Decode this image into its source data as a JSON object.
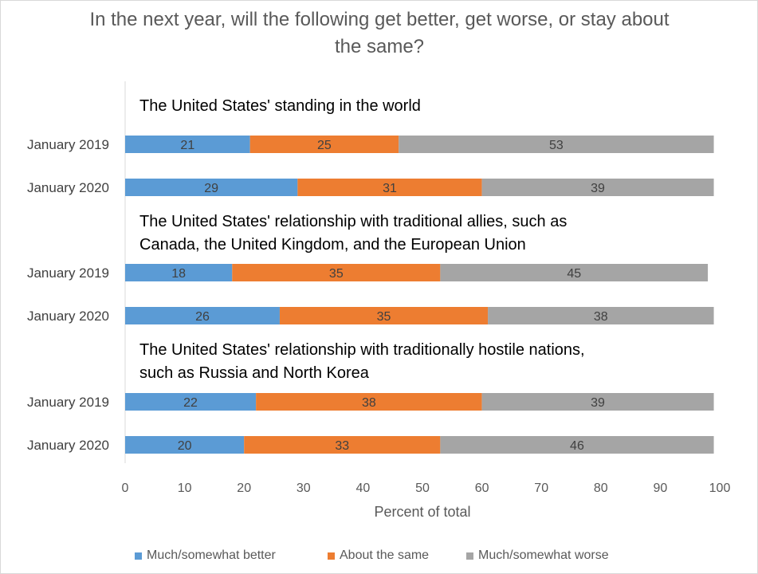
{
  "chart_data": {
    "type": "bar",
    "orientation": "horizontal",
    "stacked": true,
    "title": "In the next year, will the following get better, get worse, or stay about the same?",
    "xlabel": "Percent of total",
    "xlim": [
      0,
      100
    ],
    "xticks": [
      "0",
      "10",
      "20",
      "30",
      "40",
      "50",
      "60",
      "70",
      "80",
      "90",
      "100"
    ],
    "grid": false,
    "legend_position": "bottom",
    "series": [
      {
        "name": "Much/somewhat better",
        "color": "#5b9bd5"
      },
      {
        "name": "About the same",
        "color": "#ed7d31"
      },
      {
        "name": "Much/somewhat worse",
        "color": "#a5a5a5"
      }
    ],
    "groups": [
      {
        "heading_lines": [
          "The United States' standing in the world"
        ],
        "rows": [
          {
            "label": "January 2019",
            "values": [
              21,
              25,
              53
            ]
          },
          {
            "label": "January 2020",
            "values": [
              29,
              31,
              39
            ]
          }
        ]
      },
      {
        "heading_lines": [
          "The United States' relationship with traditional allies, such as",
          "Canada, the United Kingdom, and the European Union"
        ],
        "rows": [
          {
            "label": "January 2019",
            "values": [
              18,
              35,
              45
            ]
          },
          {
            "label": "January 2020",
            "values": [
              26,
              35,
              38
            ]
          }
        ]
      },
      {
        "heading_lines": [
          "The United States' relationship with traditionally hostile nations,",
          "such as Russia and North Korea"
        ],
        "rows": [
          {
            "label": "January 2019",
            "values": [
              22,
              38,
              39
            ]
          },
          {
            "label": "January 2020",
            "values": [
              20,
              33,
              46
            ]
          }
        ]
      }
    ]
  }
}
